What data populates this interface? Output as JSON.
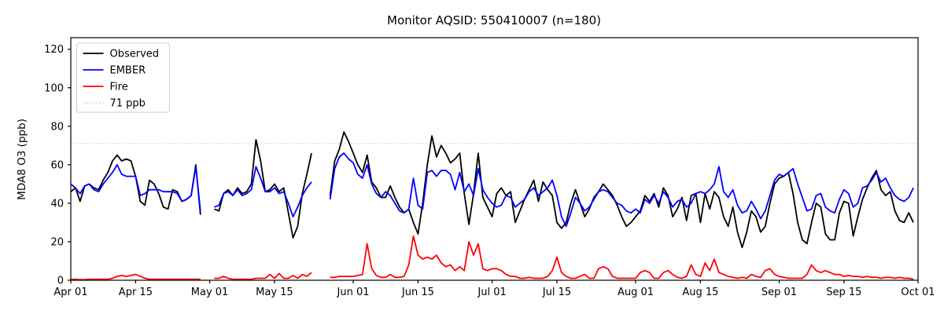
{
  "chart_data": {
    "type": "line",
    "title": "Monitor AQSID: 550410007 (n=180)",
    "ylabel": "MDA8 O3 (ppb)",
    "xlabel": "",
    "n_points_label": "n=180",
    "grid": false,
    "legend_position": "upper left",
    "x_axis": {
      "start_label": "Apr 01",
      "end_label": "Oct 01",
      "span_days": 183,
      "ticks": [
        {
          "day": 0,
          "label": "Apr 01"
        },
        {
          "day": 14,
          "label": "Apr 15"
        },
        {
          "day": 30,
          "label": "May 01"
        },
        {
          "day": 44,
          "label": "May 15"
        },
        {
          "day": 61,
          "label": "Jun 01"
        },
        {
          "day": 75,
          "label": "Jun 15"
        },
        {
          "day": 91,
          "label": "Jul 01"
        },
        {
          "day": 105,
          "label": "Jul 15"
        },
        {
          "day": 122,
          "label": "Aug 01"
        },
        {
          "day": 136,
          "label": "Aug 15"
        },
        {
          "day": 153,
          "label": "Sep 01"
        },
        {
          "day": 167,
          "label": "Sep 15"
        },
        {
          "day": 183,
          "label": "Oct 01"
        }
      ]
    },
    "ylim": [
      0,
      126
    ],
    "yticks": [
      0,
      20,
      40,
      60,
      80,
      100,
      120
    ],
    "threshold": {
      "value": 71,
      "label": "71 ppb",
      "color": "#d3d3d3",
      "style": "dotted"
    },
    "series": [
      {
        "name": "Observed",
        "color": "#000000",
        "style": "solid",
        "values": [
          46,
          48,
          41,
          49,
          50,
          48,
          47,
          52,
          56,
          62,
          65,
          62,
          63,
          62,
          54,
          41,
          39,
          52,
          50,
          45,
          38,
          37,
          47,
          46,
          41,
          42,
          44,
          60,
          34,
          null,
          null,
          37,
          36,
          45,
          47,
          44,
          48,
          45,
          46,
          50,
          73,
          62,
          46,
          47,
          50,
          46,
          48,
          35,
          22,
          28,
          45,
          55,
          66,
          null,
          null,
          null,
          44,
          62,
          68,
          77,
          72,
          66,
          60,
          56,
          65,
          51,
          48,
          43,
          43,
          49,
          43,
          38,
          35,
          37,
          30,
          24,
          40,
          60,
          75,
          64,
          70,
          66,
          61,
          63,
          66,
          45,
          29,
          45,
          66,
          43,
          38,
          33,
          45,
          48,
          44,
          46,
          30,
          36,
          42,
          47,
          52,
          41,
          51,
          47,
          44,
          30,
          27,
          30,
          40,
          47,
          40,
          33,
          37,
          43,
          46,
          50,
          47,
          44,
          39,
          33,
          28,
          30,
          33,
          36,
          44,
          41,
          45,
          38,
          48,
          44,
          33,
          37,
          43,
          31,
          44,
          45,
          30,
          45,
          37,
          46,
          43,
          33,
          28,
          38,
          25,
          17,
          25,
          36,
          33,
          25,
          28,
          40,
          50,
          53,
          54,
          56,
          45,
          30,
          21,
          19,
          30,
          40,
          38,
          24,
          21,
          21,
          35,
          41,
          40,
          23,
          33,
          42,
          48,
          53,
          57,
          47,
          44,
          46,
          36,
          31,
          30,
          35,
          30
        ]
      },
      {
        "name": "EMBER",
        "color": "#0000ff",
        "style": "solid",
        "values": [
          50,
          48,
          45,
          49,
          50,
          47,
          46,
          50,
          53,
          56,
          60,
          55,
          54,
          54,
          54,
          44,
          45,
          47,
          47,
          47,
          46,
          46,
          46,
          45,
          41,
          42,
          44,
          59,
          36,
          null,
          null,
          38,
          39,
          45,
          46,
          44,
          47,
          44,
          45,
          47,
          59,
          53,
          46,
          46,
          48,
          45,
          46,
          40,
          33,
          38,
          44,
          48,
          51,
          null,
          null,
          null,
          42,
          58,
          64,
          66,
          63,
          61,
          55,
          53,
          60,
          50,
          45,
          43,
          46,
          44,
          40,
          36,
          35,
          37,
          53,
          39,
          37,
          56,
          57,
          54,
          57,
          57,
          55,
          47,
          56,
          46,
          50,
          44,
          58,
          47,
          43,
          40,
          38,
          39,
          44,
          43,
          38,
          40,
          42,
          46,
          48,
          44,
          46,
          48,
          52,
          44,
          33,
          28,
          35,
          43,
          40,
          36,
          38,
          42,
          46,
          47,
          46,
          43,
          40,
          39,
          36,
          35,
          37,
          35,
          42,
          40,
          44,
          40,
          46,
          43,
          38,
          41,
          42,
          38,
          40,
          45,
          46,
          45,
          47,
          50,
          59,
          46,
          43,
          47,
          39,
          35,
          36,
          41,
          37,
          32,
          36,
          44,
          52,
          55,
          54,
          56,
          58,
          50,
          43,
          36,
          37,
          44,
          45,
          38,
          36,
          35,
          42,
          47,
          45,
          38,
          40,
          48,
          49,
          52,
          56,
          51,
          53,
          48,
          44,
          42,
          41,
          43,
          48
        ]
      },
      {
        "name": "Fire",
        "color": "#ff0000",
        "style": "solid",
        "values": [
          0.5,
          0.5,
          0.3,
          0.3,
          0.5,
          0.5,
          0.5,
          0.5,
          0.5,
          1,
          2,
          2.5,
          2,
          2.5,
          3,
          2,
          1,
          0.5,
          0.5,
          0.5,
          0.5,
          0.5,
          0.5,
          0.5,
          0.5,
          0.5,
          0.5,
          0.5,
          0.5,
          null,
          null,
          1,
          1,
          2,
          1,
          0.5,
          0.5,
          0.5,
          0.5,
          0.5,
          1,
          1,
          1,
          3,
          1,
          3.5,
          1,
          1,
          2.5,
          1,
          3,
          2,
          4,
          null,
          null,
          null,
          1.5,
          1.5,
          2,
          2,
          2,
          2,
          2.5,
          3,
          19,
          6,
          2.5,
          1.5,
          1.5,
          3,
          1.5,
          1.5,
          2,
          8,
          23,
          13,
          11,
          12,
          11,
          13,
          9,
          7,
          8,
          5,
          7,
          5,
          20,
          13,
          19,
          6,
          5,
          6,
          6,
          5,
          3,
          2,
          2,
          1,
          1,
          1.5,
          1,
          1,
          1,
          2,
          5,
          12,
          4,
          2,
          1,
          1,
          2,
          3,
          1,
          1,
          6,
          7,
          6,
          2,
          1,
          1,
          1,
          1,
          1,
          4,
          5,
          4,
          1,
          1,
          4,
          5,
          3,
          1.5,
          1,
          2,
          8,
          3,
          2,
          9,
          5,
          11,
          4,
          3,
          2,
          1.5,
          1,
          1.5,
          1,
          3,
          2,
          1.5,
          5,
          6,
          3,
          2,
          1.5,
          1,
          1,
          1,
          1,
          3,
          8,
          5,
          4,
          5,
          4,
          3,
          3,
          2,
          2.5,
          2,
          2,
          1.5,
          2,
          1.5,
          1.5,
          1,
          1.5,
          1.5,
          1,
          1.5,
          1,
          1,
          0.5
        ]
      }
    ]
  }
}
